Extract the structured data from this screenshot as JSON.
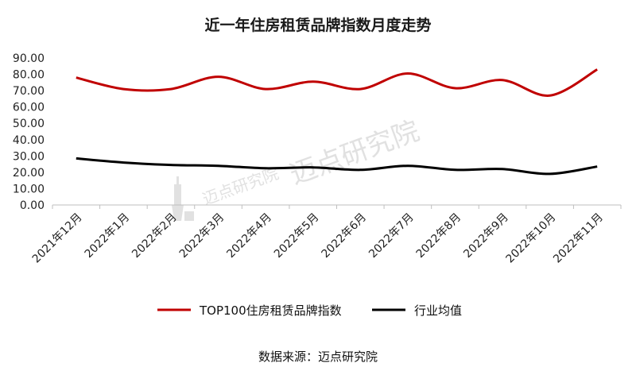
{
  "chart_data": {
    "type": "line",
    "title": "近一年住房租赁品牌指数月度走势",
    "categories": [
      "2021年12月",
      "2022年1月",
      "2022年2月",
      "2022年3月",
      "2022年4月",
      "2022年5月",
      "2022年6月",
      "2022年7月",
      "2022年8月",
      "2022年9月",
      "2022年10月",
      "2022年11月"
    ],
    "series": [
      {
        "name": "TOP100住房租赁品牌指数",
        "color": "#c00000",
        "values": [
          78.0,
          71.0,
          71.0,
          78.5,
          71.0,
          75.5,
          71.0,
          80.5,
          71.5,
          76.5,
          67.0,
          83.0
        ]
      },
      {
        "name": "行业均值",
        "color": "#000000",
        "values": [
          28.5,
          26.0,
          24.5,
          24.0,
          22.5,
          23.0,
          21.5,
          24.0,
          21.5,
          22.0,
          19.0,
          23.5
        ]
      }
    ],
    "ylim": [
      0,
      90
    ],
    "yticks": [
      "0.00",
      "10.00",
      "20.00",
      "30.00",
      "40.00",
      "50.00",
      "60.00",
      "70.00",
      "80.00",
      "90.00"
    ],
    "xlabel": "",
    "ylabel": "",
    "grid": false,
    "legend_position": "bottom",
    "source": "数据来源：迈点研究院",
    "watermark": "迈点研究院"
  }
}
